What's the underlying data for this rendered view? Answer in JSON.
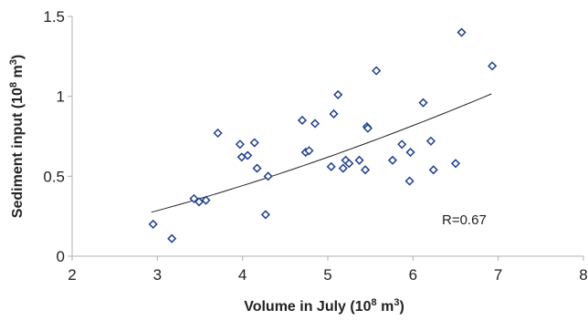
{
  "chart_data": {
    "type": "scatter",
    "title": "",
    "xlabel_main": "Volume in July (10",
    "xlabel_sup": "8",
    "xlabel_tail": " m",
    "xlabel_unit_sup": "3",
    "xlabel_close": ")",
    "ylabel_main": "Sediment input (10",
    "ylabel_sup": "8",
    "ylabel_tail": " m",
    "ylabel_unit_sup": "3",
    "ylabel_close": ")",
    "xlim": [
      2,
      8
    ],
    "ylim": [
      0,
      1.5
    ],
    "x_ticks": [
      "2",
      "3",
      "4",
      "5",
      "6",
      "7",
      "8"
    ],
    "y_ticks": [
      "0",
      "0.5",
      "1",
      "1.5"
    ],
    "marker": "open-diamond",
    "marker_color": "#1f3f8f",
    "trend_color": "#222222",
    "axis_color": "#b0b0b0",
    "annotation": "R=0.67",
    "points": [
      [
        2.95,
        0.2
      ],
      [
        3.17,
        0.11
      ],
      [
        3.43,
        0.36
      ],
      [
        3.49,
        0.34
      ],
      [
        3.57,
        0.35
      ],
      [
        3.71,
        0.77
      ],
      [
        3.97,
        0.7
      ],
      [
        3.99,
        0.62
      ],
      [
        4.06,
        0.63
      ],
      [
        4.14,
        0.71
      ],
      [
        4.17,
        0.55
      ],
      [
        4.27,
        0.26
      ],
      [
        4.3,
        0.5
      ],
      [
        4.7,
        0.85
      ],
      [
        4.74,
        0.65
      ],
      [
        4.78,
        0.66
      ],
      [
        4.85,
        0.83
      ],
      [
        5.04,
        0.56
      ],
      [
        5.07,
        0.89
      ],
      [
        5.12,
        1.01
      ],
      [
        5.18,
        0.55
      ],
      [
        5.21,
        0.6
      ],
      [
        5.25,
        0.58
      ],
      [
        5.37,
        0.6
      ],
      [
        5.44,
        0.54
      ],
      [
        5.46,
        0.81
      ],
      [
        5.47,
        0.8
      ],
      [
        5.57,
        1.16
      ],
      [
        5.76,
        0.6
      ],
      [
        5.87,
        0.7
      ],
      [
        5.96,
        0.47
      ],
      [
        5.97,
        0.65
      ],
      [
        6.12,
        0.96
      ],
      [
        6.21,
        0.72
      ],
      [
        6.24,
        0.54
      ],
      [
        6.5,
        0.58
      ],
      [
        6.57,
        1.4
      ],
      [
        6.93,
        1.19
      ]
    ],
    "trendline": {
      "type": "power",
      "x_range": [
        2.93,
        6.92
      ],
      "y_at_start": 0.275,
      "y_at_end": 1.015
    }
  }
}
